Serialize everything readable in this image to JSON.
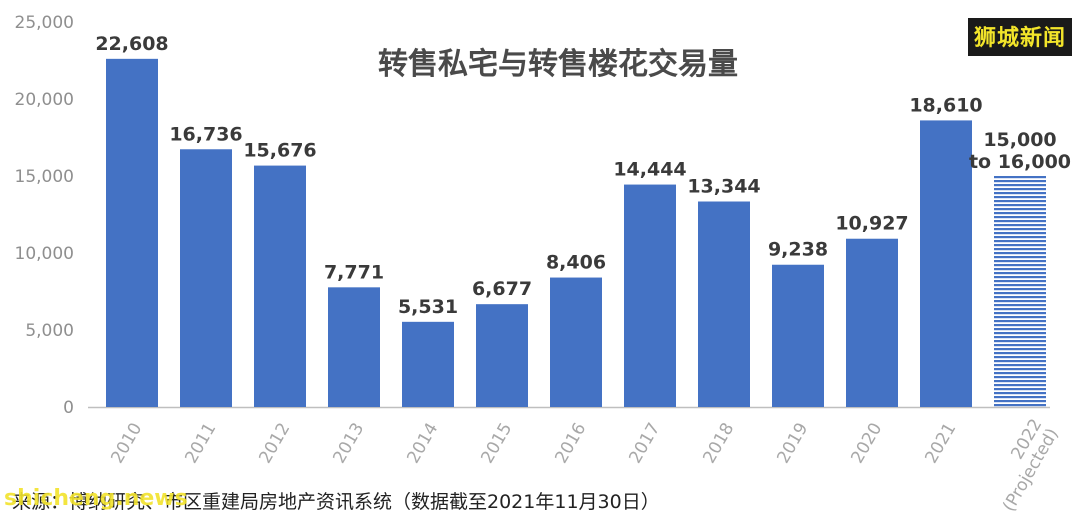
{
  "brand_watermark": "狮城新闻",
  "url_watermark": "shicheng.news",
  "source_note": "来源：博纳研究、市区重建局房地产资讯系统（数据截至2021年11月30日）",
  "colors": {
    "bar": "#4472c4",
    "projected": "#4472c4",
    "axis": "#bfbfbf"
  },
  "chart_data": {
    "type": "bar",
    "title": "转售私宅与转售楼花交易量",
    "xlabel": "",
    "ylabel": "",
    "ylim": [
      0,
      25000
    ],
    "yticks": [
      "25,000",
      "20,000",
      "15,000",
      "10,000",
      "5,000",
      "0"
    ],
    "yticks_values": [
      25000,
      20000,
      15000,
      10000,
      5000,
      0
    ],
    "grid": false,
    "categories": [
      "2010",
      "2011",
      "2012",
      "2013",
      "2014",
      "2015",
      "2016",
      "2017",
      "2018",
      "2019",
      "2020",
      "2021",
      "2022 (Projected)"
    ],
    "values": [
      22608,
      16736,
      15676,
      7771,
      5531,
      6677,
      8406,
      14444,
      13344,
      9238,
      10927,
      18610,
      15000
    ],
    "value_labels": [
      "22,608",
      "16,736",
      "15,676",
      "7,771",
      "5,531",
      "6,677",
      "8,406",
      "14,444",
      "13,344",
      "9,238",
      "10,927",
      "18,610",
      "15,000 to 16,000"
    ],
    "projected_index": 12
  }
}
